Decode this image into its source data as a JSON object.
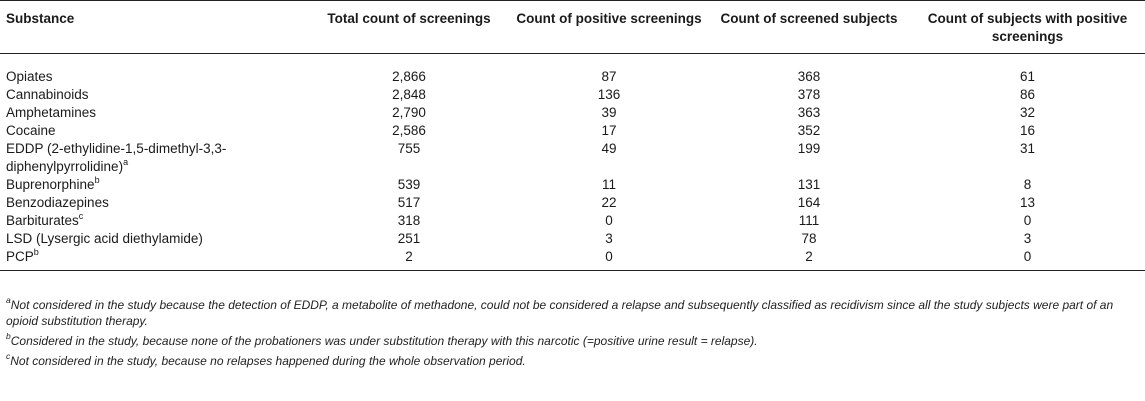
{
  "table": {
    "headers": [
      "Substance",
      "Total count of screenings",
      "Count of positive screenings",
      "Count of screened subjects",
      "Count of subjects with positive screenings"
    ],
    "rows": [
      {
        "substance": "Opiates",
        "sup": "",
        "total": "2,866",
        "positive": "87",
        "subjects": "368",
        "subjects_positive": "61"
      },
      {
        "substance": "Cannabinoids",
        "sup": "",
        "total": "2,848",
        "positive": "136",
        "subjects": "378",
        "subjects_positive": "86"
      },
      {
        "substance": "Amphetamines",
        "sup": "",
        "total": "2,790",
        "positive": "39",
        "subjects": "363",
        "subjects_positive": "32"
      },
      {
        "substance": "Cocaine",
        "sup": "",
        "total": "2,586",
        "positive": "17",
        "subjects": "352",
        "subjects_positive": "16"
      },
      {
        "substance": "EDDP (2-ethylidine-1,5-dimethyl-3,3-diphenylpyrrolidine)",
        "sup": "a",
        "total": "755",
        "positive": "49",
        "subjects": "199",
        "subjects_positive": "31"
      },
      {
        "substance": "Buprenorphine",
        "sup": "b",
        "total": "539",
        "positive": "11",
        "subjects": "131",
        "subjects_positive": "8"
      },
      {
        "substance": "Benzodiazepines",
        "sup": "",
        "total": "517",
        "positive": "22",
        "subjects": "164",
        "subjects_positive": "13"
      },
      {
        "substance": "Barbiturates",
        "sup": "c",
        "total": "318",
        "positive": "0",
        "subjects": "111",
        "subjects_positive": "0"
      },
      {
        "substance": "LSD (Lysergic acid diethylamide)",
        "sup": "",
        "total": "251",
        "positive": "3",
        "subjects": "78",
        "subjects_positive": "3"
      },
      {
        "substance": "PCP",
        "sup": "b",
        "total": "2",
        "positive": "0",
        "subjects": "2",
        "subjects_positive": "0"
      }
    ]
  },
  "footnotes": [
    {
      "mark": "a",
      "text": "Not considered in the study because the detection of EDDP, a metabolite of methadone, could not be considered a relapse and subsequently classified as recidivism since all the study subjects were part of an opioid substitution therapy."
    },
    {
      "mark": "b",
      "text": "Considered in the study, because none of the probationers was under substitution therapy with this narcotic (=positive urine result = relapse)."
    },
    {
      "mark": "c",
      "text": "Not considered in the study, because no relapses happened during the whole observation period."
    }
  ]
}
